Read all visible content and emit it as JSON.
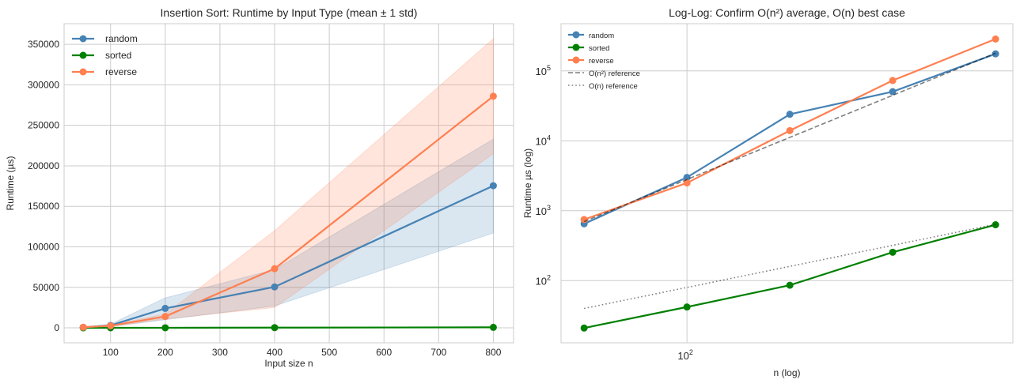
{
  "chart_data": [
    {
      "type": "line",
      "title": "Insertion Sort: Runtime by Input Type (mean ± 1 std)",
      "xlabel": "Input size n",
      "ylabel": "Runtime (µs)",
      "xscale": "linear",
      "yscale": "linear",
      "xlim": [
        15,
        837
      ],
      "ylim": [
        -18500,
        375500
      ],
      "xticks": [
        100,
        200,
        300,
        400,
        500,
        600,
        700,
        800
      ],
      "xtick_labels": [
        "100",
        "200",
        "300",
        "400",
        "500",
        "600",
        "700",
        "800"
      ],
      "yticks": [
        0,
        50000,
        100000,
        150000,
        200000,
        250000,
        300000,
        350000
      ],
      "ytick_labels": [
        "0",
        "50000",
        "100000",
        "150000",
        "200000",
        "250000",
        "300000",
        "350000"
      ],
      "grid": true,
      "legend_position": "top-left",
      "x": [
        50,
        100,
        200,
        400,
        800
      ],
      "series": [
        {
          "name": "random",
          "color": "#4682b4",
          "values": [
            650,
            3000,
            24000,
            50500,
            175500
          ],
          "band_low": [
            300,
            1500,
            10000,
            27000,
            117000
          ],
          "band_high": [
            1000,
            4500,
            37000,
            72000,
            233000
          ]
        },
        {
          "name": "sorted",
          "color": "#008000",
          "values": [
            21,
            42,
            86,
            255,
            630
          ],
          "band_low": [
            15,
            35,
            70,
            200,
            500
          ],
          "band_high": [
            27,
            50,
            100,
            310,
            760
          ]
        },
        {
          "name": "reverse",
          "color": "#ff7f50",
          "values": [
            750,
            2500,
            14000,
            73000,
            286000
          ],
          "band_low": [
            500,
            1500,
            11000,
            25000,
            215000
          ],
          "band_high": [
            1000,
            3500,
            17000,
            120000,
            357000
          ]
        }
      ]
    },
    {
      "type": "line",
      "title": "Log-Log: Confirm O(n²) average, O(n) best case",
      "xlabel": "n (log)",
      "ylabel": "Runtime µs (log)",
      "xscale": "log",
      "yscale": "log",
      "xlim": [
        42.8,
        899
      ],
      "ylim": [
        12.9,
        474000
      ],
      "xticks": [
        100
      ],
      "xtick_labels": [
        "10",
        "2"
      ],
      "yticks": [
        100,
        1000,
        10000,
        100000
      ],
      "ytick_labels": [
        [
          "10",
          "2"
        ],
        [
          "10",
          "3"
        ],
        [
          "10",
          "4"
        ],
        [
          "10",
          "5"
        ]
      ],
      "grid": true,
      "legend_position": "top-left",
      "x": [
        50,
        100,
        200,
        400,
        800
      ],
      "series": [
        {
          "name": "random",
          "color": "#4682b4",
          "style": "solid-marker",
          "values": [
            650,
            3000,
            24000,
            50500,
            175500
          ]
        },
        {
          "name": "sorted",
          "color": "#008000",
          "style": "solid-marker",
          "values": [
            21,
            42,
            86,
            255,
            630
          ]
        },
        {
          "name": "reverse",
          "color": "#ff7f50",
          "style": "solid-marker",
          "values": [
            750,
            2500,
            14000,
            73000,
            286000
          ]
        },
        {
          "name": "O(n²) reference",
          "color": "#000000",
          "style": "dashed",
          "values": [
            700,
            2800,
            11200,
            44800,
            179200
          ]
        },
        {
          "name": "O(n) reference",
          "color": "#000000",
          "style": "dotted",
          "values": [
            40,
            80,
            160,
            320,
            640
          ]
        }
      ]
    }
  ]
}
